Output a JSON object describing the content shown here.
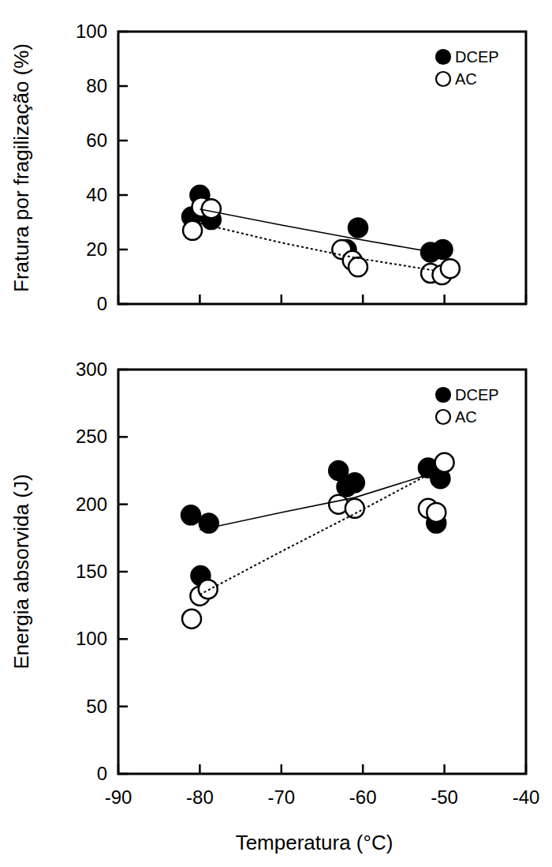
{
  "chart_data": [
    {
      "type": "scatter",
      "ylabel": "Fratura por fragilização (%)",
      "xlim": [
        -90,
        -40
      ],
      "xticks": [
        -90,
        -80,
        -70,
        -60,
        -50,
        -40
      ],
      "ylim": [
        0,
        100
      ],
      "yticks": [
        0,
        20,
        40,
        60,
        80,
        100
      ],
      "tick_labels": "y",
      "legend": "upper right",
      "series": [
        {
          "name": "DCEP",
          "color": "#000000",
          "marker": "filled-circle",
          "line_style": "solid",
          "x": [
            -81,
            -80,
            -78.6,
            -62,
            -60.6,
            -51.7,
            -50.2
          ],
          "values": [
            32,
            40,
            31,
            20,
            28,
            19,
            20
          ],
          "fit_x": [
            -80,
            -70,
            -61,
            -51
          ],
          "fit_values": [
            34.8,
            29,
            24,
            18.8
          ]
        },
        {
          "name": "AC",
          "color": "#000000",
          "marker": "open-circle",
          "line_style": "dashed",
          "x": [
            -80.9,
            -79.8,
            -78.6,
            -62.6,
            -61.3,
            -60.6,
            -51.7,
            -50.3,
            -49.3
          ],
          "values": [
            27,
            35.6,
            35,
            20,
            16,
            13.6,
            11.3,
            10.7,
            13
          ],
          "fit_x": [
            -80,
            -70,
            -61,
            -51
          ],
          "fit_values": [
            29.6,
            22.5,
            17,
            12.2
          ]
        }
      ]
    },
    {
      "type": "scatter",
      "xlabel": "Temperatura (°C)",
      "ylabel": "Energia absorvida (J)",
      "xlim": [
        -90,
        -40
      ],
      "xticks": [
        -90,
        -80,
        -70,
        -60,
        -50,
        -40
      ],
      "ylim": [
        0,
        300
      ],
      "yticks": [
        0,
        50,
        100,
        150,
        200,
        250,
        300
      ],
      "tick_labels": true,
      "legend": "upper right",
      "series": [
        {
          "name": "DCEP",
          "color": "#000000",
          "marker": "filled-circle",
          "line_style": "solid",
          "x": [
            -81.1,
            -78.9,
            -79.9,
            -63,
            -62,
            -61,
            -52,
            -50.5,
            -51
          ],
          "values": [
            192,
            186,
            147,
            225,
            213,
            216,
            227,
            219,
            186
          ],
          "fit_x": [
            -80,
            -70,
            -61,
            -52
          ],
          "fit_values": [
            181,
            194,
            205,
            222
          ]
        },
        {
          "name": "AC",
          "color": "#000000",
          "marker": "open-circle",
          "line_style": "dashed",
          "x": [
            -81,
            -80,
            -79,
            -63,
            -61,
            -52,
            -51,
            -50
          ],
          "values": [
            115,
            132,
            137,
            200,
            197,
            197,
            194,
            231
          ],
          "fit_x": [
            -80,
            -70,
            -61,
            -52
          ],
          "fit_values": [
            133,
            165,
            193,
            222
          ]
        }
      ]
    }
  ]
}
